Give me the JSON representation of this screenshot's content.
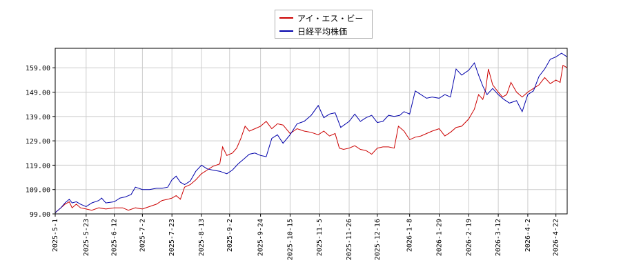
{
  "chart_data": {
    "type": "line",
    "title": "",
    "xlabel": "",
    "ylabel": "",
    "x_range": [
      "2025-05-01",
      "2026-04-30"
    ],
    "ylim": [
      99.0,
      167.0
    ],
    "y_ticks": [
      "99.00",
      "109.00",
      "119.00",
      "129.00",
      "139.00",
      "149.00",
      "159.00"
    ],
    "x_ticks": [
      "2025-5-1",
      "2025-5-23",
      "2025-6-12",
      "2025-7-2",
      "2025-7-23",
      "2025-8-13",
      "2025-9-2",
      "2025-9-24",
      "2025-10-15",
      "2025-11-5",
      "2025-11-26",
      "2025-12-16",
      "2026-1-8",
      "2026-1-29",
      "2026-2-19",
      "2026-3-12",
      "2026-4-2",
      "2026-4-22"
    ],
    "grid": true,
    "legend_position": "top-center",
    "series": [
      {
        "name": "アイ・エス・ビー",
        "color": "#cc0000",
        "points": [
          [
            "2025-05-01",
            99.5
          ],
          [
            "2025-05-05",
            101.5
          ],
          [
            "2025-05-08",
            103.0
          ],
          [
            "2025-05-11",
            104.0
          ],
          [
            "2025-05-13",
            101.5
          ],
          [
            "2025-05-16",
            103.0
          ],
          [
            "2025-05-19",
            101.5
          ],
          [
            "2025-05-23",
            101.0
          ],
          [
            "2025-05-27",
            100.5
          ],
          [
            "2025-06-01",
            101.5
          ],
          [
            "2025-06-06",
            101.0
          ],
          [
            "2025-06-12",
            101.5
          ],
          [
            "2025-06-18",
            101.5
          ],
          [
            "2025-06-22",
            100.5
          ],
          [
            "2025-06-27",
            101.5
          ],
          [
            "2025-07-02",
            101.0
          ],
          [
            "2025-07-07",
            102.0
          ],
          [
            "2025-07-12",
            103.0
          ],
          [
            "2025-07-16",
            104.5
          ],
          [
            "2025-07-20",
            105.0
          ],
          [
            "2025-07-23",
            105.5
          ],
          [
            "2025-07-26",
            106.5
          ],
          [
            "2025-07-29",
            105.0
          ],
          [
            "2025-08-01",
            110.0
          ],
          [
            "2025-08-05",
            111.0
          ],
          [
            "2025-08-09",
            113.0
          ],
          [
            "2025-08-13",
            115.5
          ],
          [
            "2025-08-17",
            117.0
          ],
          [
            "2025-08-21",
            118.5
          ],
          [
            "2025-08-26",
            119.5
          ],
          [
            "2025-08-28",
            126.5
          ],
          [
            "2025-08-31",
            123.0
          ],
          [
            "2025-09-04",
            124.0
          ],
          [
            "2025-09-07",
            126.0
          ],
          [
            "2025-09-10",
            130.0
          ],
          [
            "2025-09-13",
            135.0
          ],
          [
            "2025-09-16",
            133.0
          ],
          [
            "2025-09-20",
            134.0
          ],
          [
            "2025-09-24",
            135.0
          ],
          [
            "2025-09-28",
            137.0
          ],
          [
            "2025-10-02",
            134.0
          ],
          [
            "2025-10-06",
            136.0
          ],
          [
            "2025-10-10",
            135.5
          ],
          [
            "2025-10-15",
            132.0
          ],
          [
            "2025-10-20",
            134.0
          ],
          [
            "2025-10-25",
            133.0
          ],
          [
            "2025-10-30",
            132.5
          ],
          [
            "2025-11-04",
            131.5
          ],
          [
            "2025-11-08",
            133.0
          ],
          [
            "2025-11-12",
            131.0
          ],
          [
            "2025-11-16",
            132.0
          ],
          [
            "2025-11-19",
            126.0
          ],
          [
            "2025-11-22",
            125.5
          ],
          [
            "2025-11-26",
            126.0
          ],
          [
            "2025-11-30",
            127.0
          ],
          [
            "2025-12-04",
            125.5
          ],
          [
            "2025-12-08",
            125.0
          ],
          [
            "2025-12-12",
            123.5
          ],
          [
            "2025-12-16",
            126.0
          ],
          [
            "2025-12-20",
            126.5
          ],
          [
            "2025-12-24",
            126.5
          ],
          [
            "2025-12-28",
            126.0
          ],
          [
            "2025-12-31",
            135.0
          ],
          [
            "2026-01-04",
            133.0
          ],
          [
            "2026-01-08",
            129.5
          ],
          [
            "2026-01-12",
            130.5
          ],
          [
            "2026-01-16",
            131.0
          ],
          [
            "2026-01-20",
            132.0
          ],
          [
            "2026-01-24",
            133.0
          ],
          [
            "2026-01-29",
            134.0
          ],
          [
            "2026-02-02",
            131.0
          ],
          [
            "2026-02-06",
            132.5
          ],
          [
            "2026-02-10",
            134.5
          ],
          [
            "2026-02-14",
            135.0
          ],
          [
            "2026-02-19",
            138.0
          ],
          [
            "2026-02-23",
            142.0
          ],
          [
            "2026-02-26",
            148.0
          ],
          [
            "2026-03-01",
            146.0
          ],
          [
            "2026-03-03",
            150.0
          ],
          [
            "2026-03-05",
            158.5
          ],
          [
            "2026-03-08",
            152.0
          ],
          [
            "2026-03-12",
            149.0
          ],
          [
            "2026-03-15",
            147.0
          ],
          [
            "2026-03-18",
            148.0
          ],
          [
            "2026-03-21",
            153.0
          ],
          [
            "2026-03-25",
            149.0
          ],
          [
            "2026-03-29",
            147.0
          ],
          [
            "2026-04-02",
            149.0
          ],
          [
            "2026-04-06",
            150.5
          ],
          [
            "2026-04-10",
            152.0
          ],
          [
            "2026-04-14",
            155.0
          ],
          [
            "2026-04-18",
            152.5
          ],
          [
            "2026-04-22",
            154.0
          ],
          [
            "2026-04-25",
            153.0
          ],
          [
            "2026-04-27",
            160.0
          ],
          [
            "2026-04-30",
            159.0
          ]
        ]
      },
      {
        "name": "日経平均株価",
        "color": "#0000aa",
        "points": [
          [
            "2025-05-01",
            99.5
          ],
          [
            "2025-05-05",
            101.5
          ],
          [
            "2025-05-08",
            103.5
          ],
          [
            "2025-05-11",
            105.0
          ],
          [
            "2025-05-13",
            103.5
          ],
          [
            "2025-05-16",
            104.0
          ],
          [
            "2025-05-19",
            103.0
          ],
          [
            "2025-05-23",
            102.0
          ],
          [
            "2025-05-27",
            103.5
          ],
          [
            "2025-06-01",
            104.5
          ],
          [
            "2025-06-03",
            105.5
          ],
          [
            "2025-06-06",
            103.5
          ],
          [
            "2025-06-12",
            104.0
          ],
          [
            "2025-06-16",
            105.5
          ],
          [
            "2025-06-20",
            106.0
          ],
          [
            "2025-06-24",
            107.0
          ],
          [
            "2025-06-27",
            110.0
          ],
          [
            "2025-07-02",
            109.0
          ],
          [
            "2025-07-07",
            109.0
          ],
          [
            "2025-07-12",
            109.5
          ],
          [
            "2025-07-16",
            109.5
          ],
          [
            "2025-07-20",
            110.0
          ],
          [
            "2025-07-23",
            113.0
          ],
          [
            "2025-07-26",
            114.5
          ],
          [
            "2025-07-29",
            112.0
          ],
          [
            "2025-08-01",
            111.0
          ],
          [
            "2025-08-05",
            112.5
          ],
          [
            "2025-08-09",
            116.5
          ],
          [
            "2025-08-13",
            119.0
          ],
          [
            "2025-08-17",
            117.5
          ],
          [
            "2025-08-21",
            117.0
          ],
          [
            "2025-08-26",
            116.5
          ],
          [
            "2025-08-31",
            115.5
          ],
          [
            "2025-09-04",
            117.0
          ],
          [
            "2025-09-08",
            119.5
          ],
          [
            "2025-09-12",
            121.5
          ],
          [
            "2025-09-16",
            123.5
          ],
          [
            "2025-09-20",
            124.0
          ],
          [
            "2025-09-24",
            123.0
          ],
          [
            "2025-09-28",
            122.5
          ],
          [
            "2025-10-02",
            130.0
          ],
          [
            "2025-10-06",
            131.5
          ],
          [
            "2025-10-10",
            128.0
          ],
          [
            "2025-10-15",
            131.5
          ],
          [
            "2025-10-20",
            136.0
          ],
          [
            "2025-10-25",
            137.0
          ],
          [
            "2025-10-30",
            139.5
          ],
          [
            "2025-11-04",
            143.5
          ],
          [
            "2025-11-08",
            138.5
          ],
          [
            "2025-11-12",
            140.0
          ],
          [
            "2025-11-16",
            140.5
          ],
          [
            "2025-11-20",
            134.5
          ],
          [
            "2025-11-26",
            137.0
          ],
          [
            "2025-11-30",
            140.0
          ],
          [
            "2025-12-04",
            137.0
          ],
          [
            "2025-12-08",
            138.5
          ],
          [
            "2025-12-12",
            139.5
          ],
          [
            "2025-12-16",
            136.5
          ],
          [
            "2025-12-20",
            137.0
          ],
          [
            "2025-12-24",
            139.5
          ],
          [
            "2025-12-28",
            139.0
          ],
          [
            "2026-01-01",
            139.5
          ],
          [
            "2026-01-04",
            141.0
          ],
          [
            "2026-01-08",
            140.0
          ],
          [
            "2026-01-12",
            149.5
          ],
          [
            "2026-01-16",
            148.0
          ],
          [
            "2026-01-20",
            146.5
          ],
          [
            "2026-01-24",
            147.0
          ],
          [
            "2026-01-29",
            146.5
          ],
          [
            "2026-02-02",
            148.0
          ],
          [
            "2026-02-06",
            147.0
          ],
          [
            "2026-02-10",
            158.5
          ],
          [
            "2026-02-14",
            156.0
          ],
          [
            "2026-02-19",
            158.0
          ],
          [
            "2026-02-23",
            161.0
          ],
          [
            "2026-02-26",
            156.0
          ],
          [
            "2026-03-01",
            151.5
          ],
          [
            "2026-03-04",
            148.0
          ],
          [
            "2026-03-08",
            150.5
          ],
          [
            "2026-03-12",
            148.0
          ],
          [
            "2026-03-16",
            146.0
          ],
          [
            "2026-03-20",
            144.5
          ],
          [
            "2026-03-25",
            145.5
          ],
          [
            "2026-03-29",
            141.0
          ],
          [
            "2026-04-02",
            148.0
          ],
          [
            "2026-04-06",
            149.5
          ],
          [
            "2026-04-10",
            155.5
          ],
          [
            "2026-04-14",
            158.5
          ],
          [
            "2026-04-18",
            162.5
          ],
          [
            "2026-04-22",
            163.5
          ],
          [
            "2026-04-26",
            165.0
          ],
          [
            "2026-04-30",
            163.5
          ]
        ]
      }
    ]
  }
}
